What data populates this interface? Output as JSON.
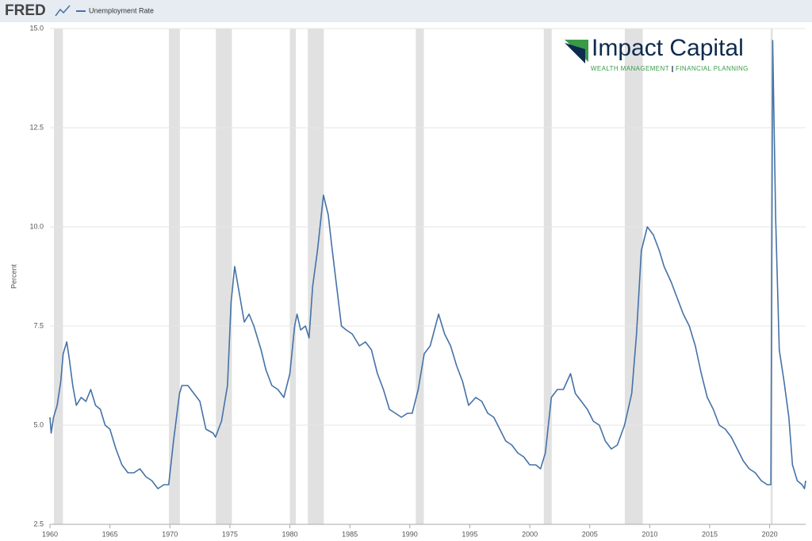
{
  "header": {
    "brand": "FRED",
    "legend": "Unemployment Rate"
  },
  "logo": {
    "name": "Impact Capital",
    "tagline_left": "WEALTH MANAGEMENT",
    "tagline_right": "FINANCIAL PLANNING"
  },
  "chart_data": {
    "type": "line",
    "y_label": "Percent",
    "xlim": [
      1960,
      2023
    ],
    "ylim": [
      2.5,
      15
    ],
    "xticks": [
      1960,
      1965,
      1970,
      1975,
      1980,
      1985,
      1990,
      1995,
      2000,
      2005,
      2010,
      2015,
      2020
    ],
    "yticks": [
      2.5,
      {
        "value": 5,
        "label": "5.0"
      },
      {
        "value": 7.5,
        "label": "7.5"
      },
      {
        "value": 10,
        "label": "10.0"
      },
      {
        "value": 12.5,
        "label": "12.5"
      },
      {
        "value": 15,
        "label": "15.0"
      }
    ],
    "grid": true,
    "recession_color": "#e1e1e1",
    "recessions": [
      [
        1960.33,
        1961.08
      ],
      [
        1969.92,
        1970.83
      ],
      [
        1973.83,
        1975.17
      ],
      [
        1980.0,
        1980.5
      ],
      [
        1981.5,
        1982.83
      ],
      [
        1990.5,
        1991.17
      ],
      [
        2001.17,
        2001.83
      ],
      [
        2007.92,
        2009.42
      ],
      [
        2020.08,
        2020.25
      ]
    ],
    "series": [
      {
        "name": "Unemployment Rate",
        "color": "#4572a7",
        "x": [
          1960.0,
          1960.1,
          1960.3,
          1960.6,
          1960.9,
          1961.1,
          1961.4,
          1961.6,
          1961.9,
          1962.2,
          1962.6,
          1963.0,
          1963.4,
          1963.8,
          1964.2,
          1964.6,
          1965.0,
          1965.5,
          1966.0,
          1966.5,
          1967.0,
          1967.5,
          1968.0,
          1968.5,
          1969.0,
          1969.5,
          1969.9,
          1970.3,
          1970.8,
          1971.0,
          1971.5,
          1972.0,
          1972.5,
          1973.0,
          1973.6,
          1973.8,
          1974.3,
          1974.8,
          1975.1,
          1975.4,
          1975.8,
          1976.2,
          1976.6,
          1977.0,
          1977.6,
          1978.0,
          1978.5,
          1979.0,
          1979.5,
          1980.0,
          1980.4,
          1980.6,
          1980.9,
          1981.3,
          1981.6,
          1981.9,
          1982.3,
          1982.8,
          1983.2,
          1983.5,
          1983.9,
          1984.3,
          1984.7,
          1985.2,
          1985.8,
          1986.3,
          1986.8,
          1987.3,
          1987.8,
          1988.3,
          1988.8,
          1989.3,
          1989.8,
          1990.2,
          1990.7,
          1991.2,
          1991.7,
          1992.4,
          1992.9,
          1993.4,
          1993.9,
          1994.4,
          1994.9,
          1995.5,
          1996.0,
          1996.5,
          1997.0,
          1997.5,
          1998.0,
          1998.5,
          1999.0,
          1999.5,
          2000.0,
          2000.5,
          2000.9,
          2001.3,
          2001.8,
          2002.3,
          2002.8,
          2003.4,
          2003.8,
          2004.3,
          2004.8,
          2005.3,
          2005.8,
          2006.3,
          2006.8,
          2007.3,
          2007.9,
          2008.5,
          2008.9,
          2009.3,
          2009.8,
          2010.3,
          2010.8,
          2011.2,
          2011.8,
          2012.3,
          2012.8,
          2013.3,
          2013.8,
          2014.3,
          2014.8,
          2015.3,
          2015.8,
          2016.3,
          2016.8,
          2017.3,
          2017.8,
          2018.3,
          2018.8,
          2019.3,
          2019.8,
          2020.1,
          2020.25,
          2020.5,
          2020.8,
          2021.2,
          2021.6,
          2021.9,
          2022.3,
          2022.7,
          2022.9,
          2023.0
        ],
        "values": [
          5.2,
          4.8,
          5.2,
          5.5,
          6.1,
          6.8,
          7.1,
          6.7,
          6.0,
          5.5,
          5.7,
          5.6,
          5.9,
          5.5,
          5.4,
          5.0,
          4.9,
          4.4,
          4.0,
          3.8,
          3.8,
          3.9,
          3.7,
          3.6,
          3.4,
          3.5,
          3.5,
          4.6,
          5.8,
          6.0,
          6.0,
          5.8,
          5.6,
          4.9,
          4.8,
          4.7,
          5.1,
          6.0,
          8.1,
          9.0,
          8.3,
          7.6,
          7.8,
          7.5,
          6.9,
          6.4,
          6.0,
          5.9,
          5.7,
          6.3,
          7.5,
          7.8,
          7.4,
          7.5,
          7.2,
          8.5,
          9.4,
          10.8,
          10.3,
          9.5,
          8.5,
          7.5,
          7.4,
          7.3,
          7.0,
          7.1,
          6.9,
          6.3,
          5.9,
          5.4,
          5.3,
          5.2,
          5.3,
          5.3,
          5.9,
          6.8,
          7.0,
          7.8,
          7.3,
          7.0,
          6.5,
          6.1,
          5.5,
          5.7,
          5.6,
          5.3,
          5.2,
          4.9,
          4.6,
          4.5,
          4.3,
          4.2,
          4.0,
          4.0,
          3.9,
          4.3,
          5.7,
          5.9,
          5.9,
          6.3,
          5.8,
          5.6,
          5.4,
          5.1,
          5.0,
          4.6,
          4.4,
          4.5,
          5.0,
          5.8,
          7.3,
          9.4,
          10.0,
          9.8,
          9.4,
          9.0,
          8.6,
          8.2,
          7.8,
          7.5,
          7.0,
          6.3,
          5.7,
          5.4,
          5.0,
          4.9,
          4.7,
          4.4,
          4.1,
          3.9,
          3.8,
          3.6,
          3.5,
          3.5,
          14.7,
          10.2,
          6.9,
          6.1,
          5.2,
          4.0,
          3.6,
          3.5,
          3.4,
          3.6
        ]
      }
    ]
  }
}
